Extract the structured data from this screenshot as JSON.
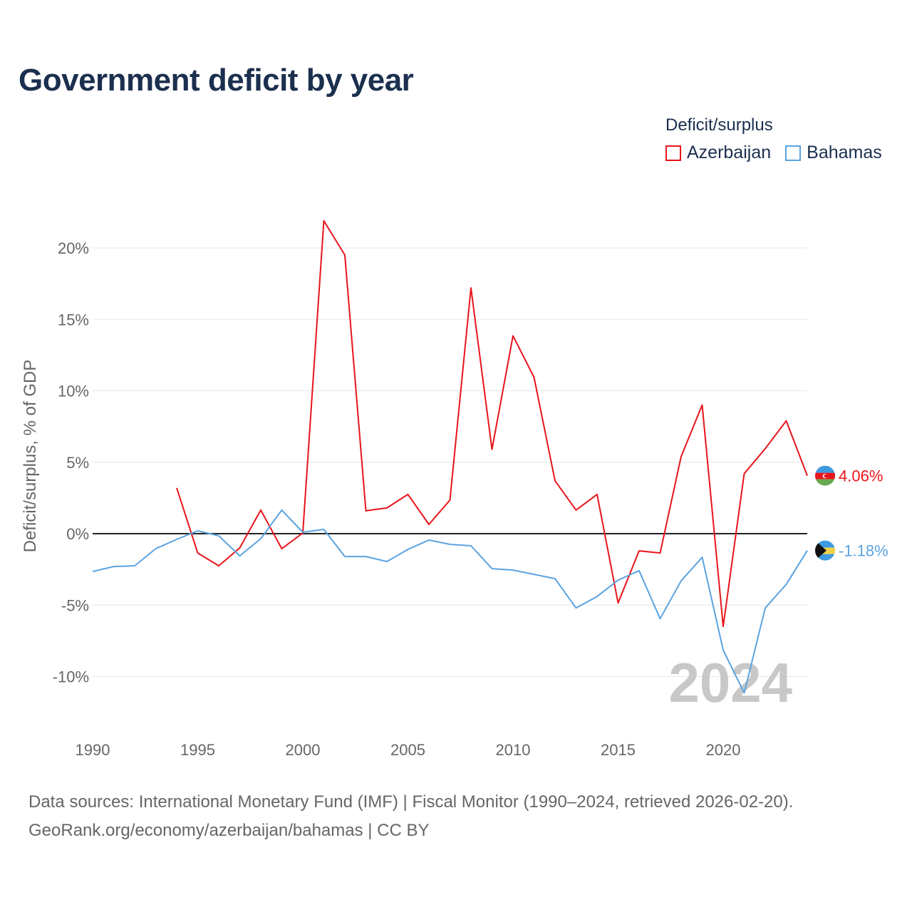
{
  "title": "Government deficit by year",
  "legend": {
    "title": "Deficit/surplus",
    "items": [
      {
        "label": "Azerbaijan",
        "color": "#e8141b"
      },
      {
        "label": "Bahamas",
        "color": "#5ba3e0"
      }
    ]
  },
  "source": {
    "line1": "Data sources: International Monetary Fund (IMF) | Fiscal Monitor (1990–2024, retrieved 2026-02-20).",
    "line2": "GeoRank.org/economy/azerbaijan/bahamas | CC BY"
  },
  "chart_data": {
    "type": "line",
    "title": "Government deficit by year",
    "xlabel": "",
    "ylabel": "Deficit/surplus, % of GDP",
    "xlim": [
      1990,
      2024
    ],
    "ylim": [
      -13,
      22
    ],
    "x_ticks": [
      1990,
      1995,
      2000,
      2005,
      2010,
      2015,
      2020
    ],
    "y_ticks": [
      -10,
      -5,
      0,
      5,
      10,
      15,
      20
    ],
    "y_tick_labels": [
      "-10%",
      "-5%",
      "0%",
      "5%",
      "10%",
      "15%",
      "20%"
    ],
    "grid": true,
    "year_watermark": "2024",
    "series": [
      {
        "name": "Azerbaijan",
        "color": "#e8141b",
        "end_label": "4.06%",
        "x": [
          1994,
          1995,
          1996,
          1997,
          1998,
          1999,
          2000,
          2001,
          2002,
          2003,
          2004,
          2005,
          2006,
          2007,
          2008,
          2009,
          2010,
          2011,
          2012,
          2013,
          2014,
          2015,
          2016,
          2017,
          2018,
          2019,
          2020,
          2021,
          2022,
          2023,
          2024
        ],
        "values": [
          3.2,
          -1.35,
          -2.25,
          -1.0,
          1.65,
          -1.05,
          0.05,
          21.9,
          19.5,
          1.6,
          1.8,
          2.75,
          0.65,
          2.35,
          17.2,
          5.9,
          13.85,
          10.95,
          3.7,
          1.65,
          2.75,
          -4.85,
          -1.2,
          -1.35,
          5.4,
          9.0,
          -6.5,
          4.2,
          5.95,
          7.9,
          4.06
        ]
      },
      {
        "name": "Bahamas",
        "color": "#5ba3e0",
        "end_label": "-1.18%",
        "x": [
          1990,
          1991,
          1992,
          1993,
          1994,
          1995,
          1996,
          1997,
          1998,
          1999,
          2000,
          2001,
          2002,
          2003,
          2004,
          2005,
          2006,
          2007,
          2008,
          2009,
          2010,
          2011,
          2012,
          2013,
          2014,
          2015,
          2016,
          2017,
          2018,
          2019,
          2020,
          2021,
          2022,
          2023,
          2024
        ],
        "values": [
          -2.65,
          -2.3,
          -2.25,
          -1.05,
          -0.4,
          0.2,
          -0.15,
          -1.55,
          -0.35,
          1.65,
          0.1,
          0.3,
          -1.6,
          -1.6,
          -1.95,
          -1.1,
          -0.45,
          -0.75,
          -0.85,
          -2.45,
          -2.55,
          -2.85,
          -3.15,
          -5.2,
          -4.4,
          -3.25,
          -2.6,
          -5.95,
          -3.3,
          -1.65,
          -8.15,
          -11.15,
          -5.2,
          -3.55,
          -1.18
        ]
      }
    ]
  }
}
